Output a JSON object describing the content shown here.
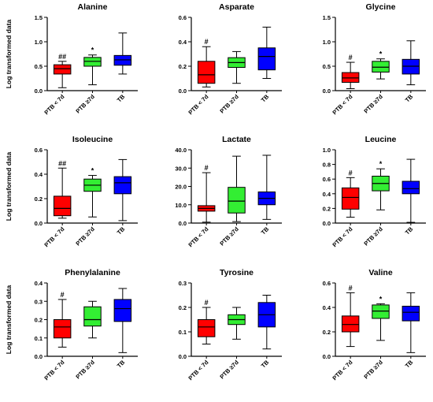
{
  "chart_data": [
    {
      "type": "box",
      "title": "Alanine",
      "ylabel": "Log transformed data",
      "ylim": [
        0,
        1.5
      ],
      "yticks": [
        "0.0",
        "0.5",
        "1.0",
        "1.5"
      ],
      "categories": [
        "PTB < 7d",
        "PTB ≥7d",
        "TB"
      ],
      "colors": [
        "#ff0000",
        "#33ee33",
        "#0000ff"
      ],
      "boxes": [
        {
          "min": 0.06,
          "q1": 0.34,
          "median": 0.45,
          "q3": 0.53,
          "max": 0.6,
          "annotation": "##"
        },
        {
          "min": 0.12,
          "q1": 0.5,
          "median": 0.6,
          "q3": 0.68,
          "max": 0.73,
          "annotation": "*"
        },
        {
          "min": 0.34,
          "q1": 0.52,
          "median": 0.63,
          "q3": 0.72,
          "max": 1.18,
          "annotation": ""
        }
      ]
    },
    {
      "type": "box",
      "title": "Asparate",
      "ylabel": "",
      "ylim": [
        0,
        0.6
      ],
      "yticks": [
        "0.0",
        "0.2",
        "0.4",
        "0.6"
      ],
      "categories": [
        "PTB < 7d",
        "PTB ≥7d",
        "TB"
      ],
      "colors": [
        "#ff0000",
        "#33ee33",
        "#0000ff"
      ],
      "boxes": [
        {
          "min": 0.03,
          "q1": 0.06,
          "median": 0.13,
          "q3": 0.24,
          "max": 0.36,
          "annotation": "#"
        },
        {
          "min": 0.06,
          "q1": 0.19,
          "median": 0.23,
          "q3": 0.27,
          "max": 0.32,
          "annotation": ""
        },
        {
          "min": 0.1,
          "q1": 0.17,
          "median": 0.28,
          "q3": 0.35,
          "max": 0.52,
          "annotation": ""
        }
      ]
    },
    {
      "type": "box",
      "title": "Glycine",
      "ylabel": "",
      "ylim": [
        0,
        1.5
      ],
      "yticks": [
        "0.0",
        "0.5",
        "1.0",
        "1.5"
      ],
      "categories": [
        "PTB < 7d",
        "PTB ≥7d",
        "TB"
      ],
      "colors": [
        "#ff0000",
        "#33ee33",
        "#0000ff"
      ],
      "boxes": [
        {
          "min": 0.04,
          "q1": 0.17,
          "median": 0.26,
          "q3": 0.37,
          "max": 0.58,
          "annotation": "#"
        },
        {
          "min": 0.24,
          "q1": 0.38,
          "median": 0.48,
          "q3": 0.6,
          "max": 0.65,
          "annotation": "*"
        },
        {
          "min": 0.12,
          "q1": 0.34,
          "median": 0.5,
          "q3": 0.64,
          "max": 1.02,
          "annotation": ""
        }
      ]
    },
    {
      "type": "box",
      "title": "Isoleucine",
      "ylabel": "Log transformed data",
      "ylim": [
        0,
        0.6
      ],
      "yticks": [
        "0.0",
        "0.2",
        "0.4",
        "0.6"
      ],
      "categories": [
        "PTB < 7d",
        "PTB ≥7d",
        "TB"
      ],
      "colors": [
        "#ff0000",
        "#33ee33",
        "#0000ff"
      ],
      "boxes": [
        {
          "min": 0.04,
          "q1": 0.06,
          "median": 0.12,
          "q3": 0.22,
          "max": 0.45,
          "annotation": "##"
        },
        {
          "min": 0.05,
          "q1": 0.26,
          "median": 0.31,
          "q3": 0.36,
          "max": 0.39,
          "annotation": "*"
        },
        {
          "min": 0.02,
          "q1": 0.24,
          "median": 0.33,
          "q3": 0.38,
          "max": 0.52,
          "annotation": ""
        }
      ]
    },
    {
      "type": "box",
      "title": "Lactate",
      "ylabel": "",
      "ylim": [
        0,
        40
      ],
      "yticks": [
        "0.0",
        "10.0",
        "20.0",
        "30.0",
        "40.0"
      ],
      "categories": [
        "PTB < 7d",
        "PTB ≥7d",
        "TB"
      ],
      "colors": [
        "#ff0000",
        "#33ee33",
        "#0000ff"
      ],
      "boxes": [
        {
          "min": 0.5,
          "q1": 6.5,
          "median": 8,
          "q3": 9.5,
          "max": 27.5,
          "annotation": "#"
        },
        {
          "min": 0.8,
          "q1": 5.5,
          "median": 12,
          "q3": 19.5,
          "max": 36.5,
          "annotation": ""
        },
        {
          "min": 2,
          "q1": 10,
          "median": 13.5,
          "q3": 17,
          "max": 37,
          "annotation": ""
        }
      ]
    },
    {
      "type": "box",
      "title": "Leucine",
      "ylabel": "",
      "ylim": [
        0,
        1.0
      ],
      "yticks": [
        "0.0",
        "0.2",
        "0.4",
        "0.6",
        "0.8",
        "1.0"
      ],
      "categories": [
        "PTB < 7d",
        "PTB ≥7d",
        "TB"
      ],
      "colors": [
        "#ff0000",
        "#33ee33",
        "#0000ff"
      ],
      "boxes": [
        {
          "min": 0.08,
          "q1": 0.19,
          "median": 0.35,
          "q3": 0.48,
          "max": 0.62,
          "annotation": "#"
        },
        {
          "min": 0.18,
          "q1": 0.44,
          "median": 0.54,
          "q3": 0.64,
          "max": 0.74,
          "annotation": "*"
        },
        {
          "min": 0.01,
          "q1": 0.4,
          "median": 0.47,
          "q3": 0.57,
          "max": 0.87,
          "annotation": ""
        }
      ]
    },
    {
      "type": "box",
      "title": "Phenylalanine",
      "ylabel": "Log transformed data",
      "ylim": [
        0,
        0.4
      ],
      "yticks": [
        "0.0",
        "0.1",
        "0.2",
        "0.3",
        "0.4"
      ],
      "categories": [
        "PTB < 7d",
        "PTB ≥7d",
        "TB"
      ],
      "colors": [
        "#ff0000",
        "#33ee33",
        "#0000ff"
      ],
      "boxes": [
        {
          "min": 0.05,
          "q1": 0.1,
          "median": 0.16,
          "q3": 0.2,
          "max": 0.31,
          "annotation": "#"
        },
        {
          "min": 0.1,
          "q1": 0.165,
          "median": 0.2,
          "q3": 0.27,
          "max": 0.3,
          "annotation": ""
        },
        {
          "min": 0.02,
          "q1": 0.19,
          "median": 0.26,
          "q3": 0.31,
          "max": 0.37,
          "annotation": ""
        }
      ]
    },
    {
      "type": "box",
      "title": "Tyrosine",
      "ylabel": "",
      "ylim": [
        0,
        0.3
      ],
      "yticks": [
        "0.0",
        "0.1",
        "0.2",
        "0.3"
      ],
      "categories": [
        "PTB < 7d",
        "PTB ≥7d",
        "TB"
      ],
      "colors": [
        "#ff0000",
        "#33ee33",
        "#0000ff"
      ],
      "boxes": [
        {
          "min": 0.05,
          "q1": 0.08,
          "median": 0.12,
          "q3": 0.15,
          "max": 0.2,
          "annotation": "#"
        },
        {
          "min": 0.07,
          "q1": 0.13,
          "median": 0.15,
          "q3": 0.17,
          "max": 0.2,
          "annotation": ""
        },
        {
          "min": 0.03,
          "q1": 0.12,
          "median": 0.17,
          "q3": 0.22,
          "max": 0.25,
          "annotation": ""
        }
      ]
    },
    {
      "type": "box",
      "title": "Valine",
      "ylabel": "",
      "ylim": [
        0,
        0.6
      ],
      "yticks": [
        "0.0",
        "0.2",
        "0.4",
        "0.6"
      ],
      "categories": [
        "PTB < 7d",
        "PTB ≥7d",
        "TB"
      ],
      "colors": [
        "#ff0000",
        "#33ee33",
        "#0000ff"
      ],
      "boxes": [
        {
          "min": 0.08,
          "q1": 0.2,
          "median": 0.26,
          "q3": 0.33,
          "max": 0.52,
          "annotation": "#"
        },
        {
          "min": 0.13,
          "q1": 0.31,
          "median": 0.37,
          "q3": 0.42,
          "max": 0.43,
          "annotation": "*"
        },
        {
          "min": 0.03,
          "q1": 0.29,
          "median": 0.36,
          "q3": 0.41,
          "max": 0.52,
          "annotation": ""
        }
      ]
    }
  ]
}
